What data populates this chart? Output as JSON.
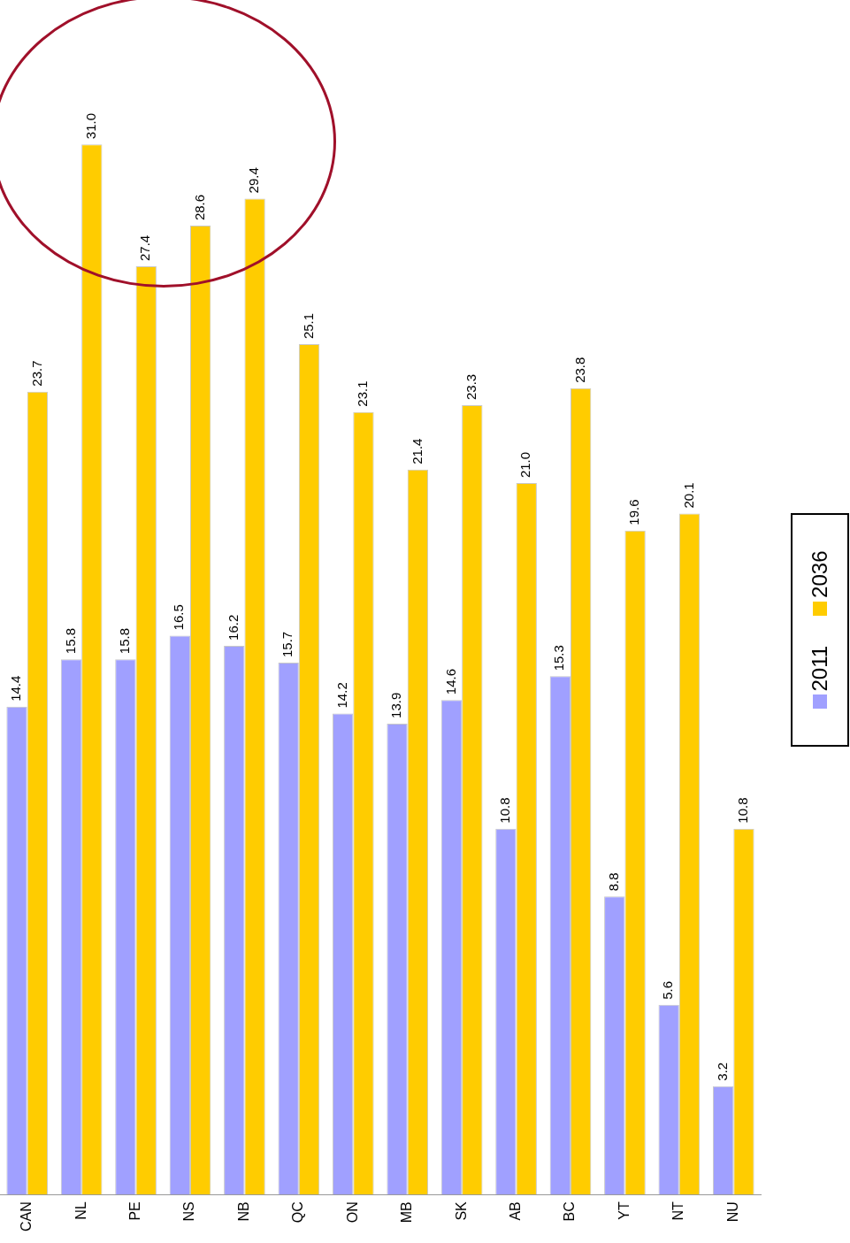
{
  "chart_data": {
    "type": "bar",
    "categories": [
      "CAN",
      "NL",
      "PE",
      "NS",
      "NB",
      "QC",
      "ON",
      "MB",
      "SK",
      "AB",
      "BC",
      "YT",
      "NT",
      "NU"
    ],
    "series": [
      {
        "name": "2011",
        "color": "#a0a0ff",
        "values": [
          14.4,
          15.8,
          15.8,
          16.5,
          16.2,
          15.7,
          14.2,
          13.9,
          14.6,
          10.8,
          15.3,
          8.8,
          5.6,
          3.2
        ],
        "value_labels": [
          "14.4",
          "15.8",
          "15.8",
          "16.5",
          "16.2",
          "15.7",
          "14.2",
          "13.9",
          "14.6",
          "10.8",
          "15.3",
          "8.8",
          "5.6",
          "3.2"
        ]
      },
      {
        "name": "2036",
        "color": "#ffcc00",
        "values": [
          23.7,
          31.0,
          27.4,
          28.6,
          29.4,
          25.1,
          23.1,
          21.4,
          23.3,
          21.0,
          23.8,
          19.6,
          20.1,
          10.8
        ],
        "value_labels": [
          "23.7",
          "31.0",
          "27.4",
          "28.6",
          "29.4",
          "25.1",
          "23.1",
          "21.4",
          "23.3",
          "21.0",
          "23.8",
          "19.6",
          "20.1",
          "10.8"
        ]
      }
    ],
    "legend": "right",
    "grid": false,
    "tick_labels": "x"
  }
}
